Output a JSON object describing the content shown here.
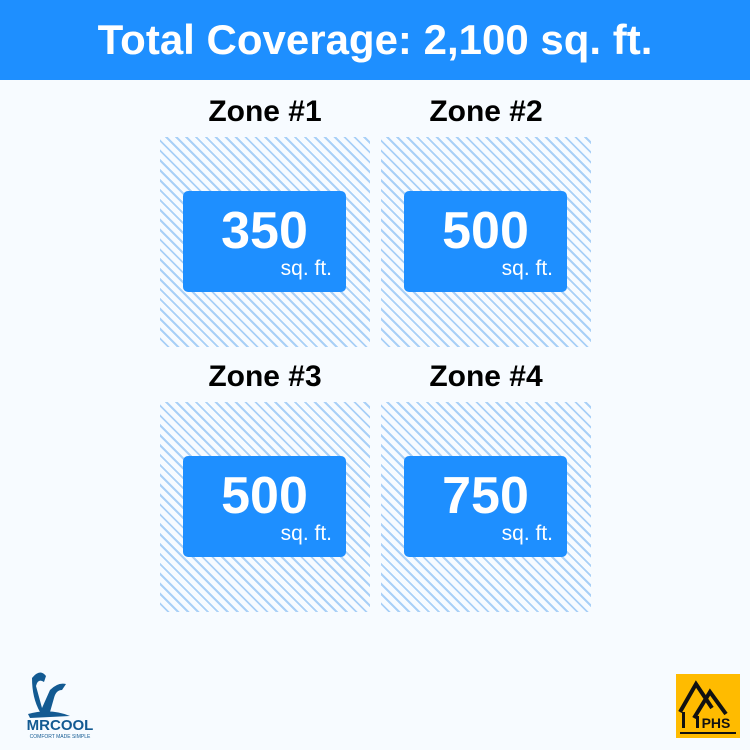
{
  "header": {
    "title": "Total Coverage: 2,100 sq. ft."
  },
  "zones": [
    {
      "title": "Zone #1",
      "value": "350",
      "unit": "sq. ft."
    },
    {
      "title": "Zone #2",
      "value": "500",
      "unit": "sq. ft."
    },
    {
      "title": "Zone #3",
      "value": "500",
      "unit": "sq. ft."
    },
    {
      "title": "Zone #4",
      "value": "750",
      "unit": "sq. ft."
    }
  ],
  "logos": {
    "left": {
      "name": "MRCOOL",
      "tagline": "COMFORT MADE SIMPLE"
    },
    "right": {
      "name": "PHS"
    }
  },
  "colors": {
    "accent": "#1e8fff",
    "hatch": "#a9d0f7",
    "phs": "#ffbb00",
    "mrcool": "#135a92"
  }
}
